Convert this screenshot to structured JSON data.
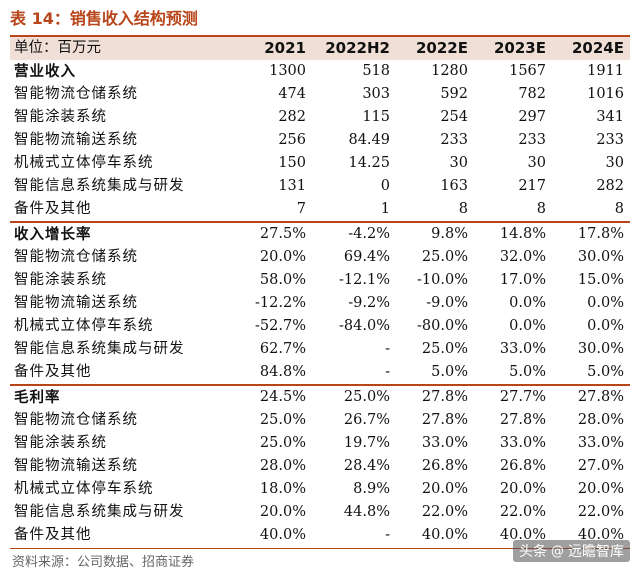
{
  "title": "表 14：销售收入结构预测",
  "header": {
    "unit": "单位：百万元",
    "columns": [
      "2021",
      "2022H2",
      "2022E",
      "2023E",
      "2024E"
    ]
  },
  "sections": [
    {
      "name": "营业收入",
      "total": [
        "1300",
        "518",
        "1280",
        "1567",
        "1911"
      ],
      "rows": [
        {
          "label": "智能物流仓储系统",
          "values": [
            "474",
            "303",
            "592",
            "782",
            "1016"
          ]
        },
        {
          "label": "智能涂装系统",
          "values": [
            "282",
            "115",
            "254",
            "297",
            "341"
          ]
        },
        {
          "label": "智能物流输送系统",
          "values": [
            "256",
            "84.49",
            "233",
            "233",
            "233"
          ]
        },
        {
          "label": "机械式立体停车系统",
          "values": [
            "150",
            "14.25",
            "30",
            "30",
            "30"
          ]
        },
        {
          "label": "智能信息系统集成与研发",
          "values": [
            "131",
            "0",
            "163",
            "217",
            "282"
          ]
        },
        {
          "label": "备件及其他",
          "values": [
            "7",
            "1",
            "8",
            "8",
            "8"
          ]
        }
      ]
    },
    {
      "name": "收入增长率",
      "total": [
        "27.5%",
        "-4.2%",
        "9.8%",
        "14.8%",
        "17.8%"
      ],
      "rows": [
        {
          "label": "智能物流仓储系统",
          "values": [
            "20.0%",
            "69.4%",
            "25.0%",
            "32.0%",
            "30.0%"
          ]
        },
        {
          "label": "智能涂装系统",
          "values": [
            "58.0%",
            "-12.1%",
            "-10.0%",
            "17.0%",
            "15.0%"
          ]
        },
        {
          "label": "智能物流输送系统",
          "values": [
            "-12.2%",
            "-9.2%",
            "-9.0%",
            "0.0%",
            "0.0%"
          ]
        },
        {
          "label": "机械式立体停车系统",
          "values": [
            "-52.7%",
            "-84.0%",
            "-80.0%",
            "0.0%",
            "0.0%"
          ]
        },
        {
          "label": "智能信息系统集成与研发",
          "values": [
            "62.7%",
            "-",
            "25.0%",
            "33.0%",
            "30.0%"
          ]
        },
        {
          "label": "备件及其他",
          "values": [
            "84.8%",
            "-",
            "5.0%",
            "5.0%",
            "5.0%"
          ]
        }
      ]
    },
    {
      "name": "毛利率",
      "total": [
        "24.5%",
        "25.0%",
        "27.8%",
        "27.7%",
        "27.8%"
      ],
      "rows": [
        {
          "label": "智能物流仓储系统",
          "values": [
            "25.0%",
            "26.7%",
            "27.8%",
            "27.8%",
            "28.0%"
          ]
        },
        {
          "label": "智能涂装系统",
          "values": [
            "25.0%",
            "19.7%",
            "33.0%",
            "33.0%",
            "33.0%"
          ]
        },
        {
          "label": "智能物流输送系统",
          "values": [
            "28.0%",
            "28.4%",
            "26.8%",
            "26.8%",
            "27.0%"
          ]
        },
        {
          "label": "机械式立体停车系统",
          "values": [
            "18.0%",
            "8.9%",
            "20.0%",
            "20.0%",
            "20.0%"
          ]
        },
        {
          "label": "智能信息系统集成与研发",
          "values": [
            "20.0%",
            "44.8%",
            "22.0%",
            "22.0%",
            "22.0%"
          ]
        },
        {
          "label": "备件及其他",
          "values": [
            "40.0%",
            "-",
            "40.0%",
            "40.0%",
            "40.0%"
          ]
        }
      ]
    }
  ],
  "source": "资料来源：公司数据、招商证券",
  "watermark": {
    "prefix": "头条",
    "name": "远瞻智库",
    "icon": "at-icon"
  },
  "colors": {
    "accent": "#b8441a",
    "header_bg": "#f0dfd6"
  }
}
